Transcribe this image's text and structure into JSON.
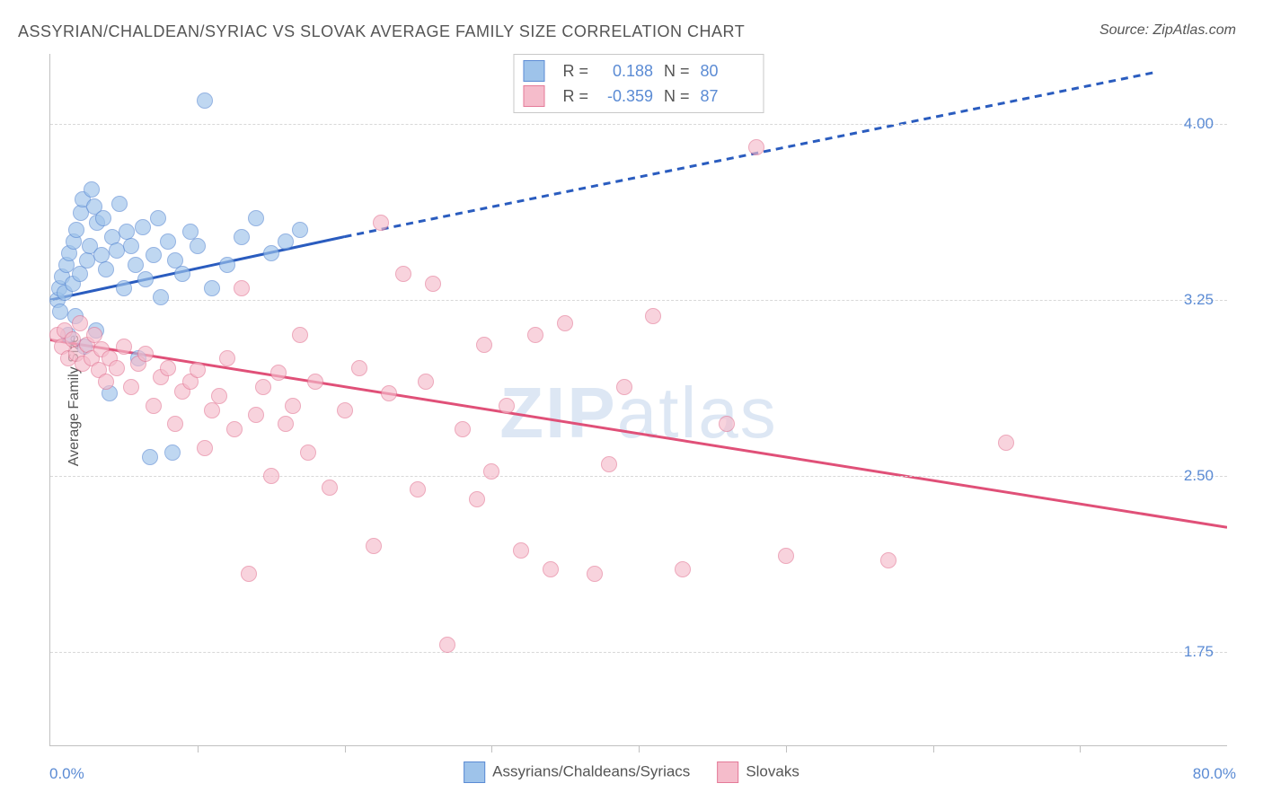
{
  "title": "ASSYRIAN/CHALDEAN/SYRIAC VS SLOVAK AVERAGE FAMILY SIZE CORRELATION CHART",
  "source": "Source: ZipAtlas.com",
  "ylabel": "Average Family Size",
  "watermark_a": "ZIP",
  "watermark_b": "atlas",
  "chart": {
    "type": "scatter",
    "background_color": "#ffffff",
    "grid_color": "#d8d8d8",
    "axis_color": "#c0c0c0",
    "xlim": [
      0,
      80
    ],
    "ylim": [
      1.35,
      4.3
    ],
    "ytick_values": [
      1.75,
      2.5,
      3.25,
      4.0
    ],
    "ytick_labels": [
      "1.75",
      "2.50",
      "3.25",
      "4.00"
    ],
    "xtick_positions": [
      10,
      20,
      30,
      40,
      50,
      60,
      70
    ],
    "xaxis_start_label": "0.0%",
    "xaxis_end_label": "80.0%",
    "ylabel_fontsize": 16,
    "tick_label_color": "#5b8bd4",
    "tick_label_fontsize": 17,
    "marker_size": 18,
    "marker_opacity": 0.35,
    "line_width": 3
  },
  "series": [
    {
      "name": "Assyrians/Chaldeans/Syriacs",
      "fill_color": "#9ec3ea",
      "stroke_color": "#5b8bd4",
      "line_color": "#2a5cbf",
      "R_label": "R =",
      "R_value": "0.188",
      "N_label": "N =",
      "N_value": "80",
      "regression": {
        "x1": 0,
        "y1": 3.25,
        "x2_solid": 20,
        "y2_solid": 3.52,
        "x2_dash": 75,
        "y2_dash": 4.22
      },
      "points": [
        [
          0.5,
          3.25
        ],
        [
          0.6,
          3.3
        ],
        [
          0.7,
          3.2
        ],
        [
          0.8,
          3.35
        ],
        [
          1.0,
          3.28
        ],
        [
          1.1,
          3.4
        ],
        [
          1.2,
          3.1
        ],
        [
          1.3,
          3.45
        ],
        [
          1.5,
          3.32
        ],
        [
          1.6,
          3.5
        ],
        [
          1.7,
          3.18
        ],
        [
          1.8,
          3.55
        ],
        [
          2.0,
          3.36
        ],
        [
          2.1,
          3.62
        ],
        [
          2.2,
          3.68
        ],
        [
          2.3,
          3.05
        ],
        [
          2.5,
          3.42
        ],
        [
          2.7,
          3.48
        ],
        [
          2.8,
          3.72
        ],
        [
          3.0,
          3.65
        ],
        [
          3.1,
          3.12
        ],
        [
          3.2,
          3.58
        ],
        [
          3.5,
          3.44
        ],
        [
          3.6,
          3.6
        ],
        [
          3.8,
          3.38
        ],
        [
          4.0,
          2.85
        ],
        [
          4.2,
          3.52
        ],
        [
          4.5,
          3.46
        ],
        [
          4.7,
          3.66
        ],
        [
          5.0,
          3.3
        ],
        [
          5.2,
          3.54
        ],
        [
          5.5,
          3.48
        ],
        [
          5.8,
          3.4
        ],
        [
          6.0,
          3.0
        ],
        [
          6.3,
          3.56
        ],
        [
          6.5,
          3.34
        ],
        [
          6.8,
          2.58
        ],
        [
          7.0,
          3.44
        ],
        [
          7.3,
          3.6
        ],
        [
          7.5,
          3.26
        ],
        [
          8.0,
          3.5
        ],
        [
          8.3,
          2.6
        ],
        [
          8.5,
          3.42
        ],
        [
          9.0,
          3.36
        ],
        [
          9.5,
          3.54
        ],
        [
          10.0,
          3.48
        ],
        [
          10.5,
          4.1
        ],
        [
          11.0,
          3.3
        ],
        [
          12.0,
          3.4
        ],
        [
          13.0,
          3.52
        ],
        [
          14.0,
          3.6
        ],
        [
          15.0,
          3.45
        ],
        [
          16.0,
          3.5
        ],
        [
          17.0,
          3.55
        ]
      ]
    },
    {
      "name": "Slovaks",
      "fill_color": "#f5bccb",
      "stroke_color": "#e47a98",
      "line_color": "#e05078",
      "R_label": "R =",
      "R_value": "-0.359",
      "N_label": "N =",
      "N_value": "87",
      "regression": {
        "x1": 0,
        "y1": 3.08,
        "x2_solid": 80,
        "y2_solid": 2.28,
        "x2_dash": 80,
        "y2_dash": 2.28
      },
      "points": [
        [
          0.5,
          3.1
        ],
        [
          0.8,
          3.05
        ],
        [
          1.0,
          3.12
        ],
        [
          1.2,
          3.0
        ],
        [
          1.5,
          3.08
        ],
        [
          1.8,
          3.02
        ],
        [
          2.0,
          3.15
        ],
        [
          2.2,
          2.98
        ],
        [
          2.5,
          3.06
        ],
        [
          2.8,
          3.0
        ],
        [
          3.0,
          3.1
        ],
        [
          3.3,
          2.95
        ],
        [
          3.5,
          3.04
        ],
        [
          3.8,
          2.9
        ],
        [
          4.0,
          3.0
        ],
        [
          4.5,
          2.96
        ],
        [
          5.0,
          3.05
        ],
        [
          5.5,
          2.88
        ],
        [
          6.0,
          2.98
        ],
        [
          6.5,
          3.02
        ],
        [
          7.0,
          2.8
        ],
        [
          7.5,
          2.92
        ],
        [
          8.0,
          2.96
        ],
        [
          8.5,
          2.72
        ],
        [
          9.0,
          2.86
        ],
        [
          9.5,
          2.9
        ],
        [
          10.0,
          2.95
        ],
        [
          10.5,
          2.62
        ],
        [
          11.0,
          2.78
        ],
        [
          11.5,
          2.84
        ],
        [
          12.0,
          3.0
        ],
        [
          12.5,
          2.7
        ],
        [
          13.0,
          3.3
        ],
        [
          13.5,
          2.08
        ],
        [
          14.0,
          2.76
        ],
        [
          14.5,
          2.88
        ],
        [
          15.0,
          2.5
        ],
        [
          15.5,
          2.94
        ],
        [
          16.0,
          2.72
        ],
        [
          16.5,
          2.8
        ],
        [
          17.0,
          3.1
        ],
        [
          17.5,
          2.6
        ],
        [
          18.0,
          2.9
        ],
        [
          19.0,
          2.45
        ],
        [
          20.0,
          2.78
        ],
        [
          21.0,
          2.96
        ],
        [
          22.0,
          2.2
        ],
        [
          22.5,
          3.58
        ],
        [
          23.0,
          2.85
        ],
        [
          24.0,
          3.36
        ],
        [
          25.0,
          2.44
        ],
        [
          25.5,
          2.9
        ],
        [
          26.0,
          3.32
        ],
        [
          27.0,
          1.78
        ],
        [
          28.0,
          2.7
        ],
        [
          29.0,
          2.4
        ],
        [
          29.5,
          3.06
        ],
        [
          30.0,
          2.52
        ],
        [
          31.0,
          2.8
        ],
        [
          32.0,
          2.18
        ],
        [
          33.0,
          3.1
        ],
        [
          34.0,
          2.1
        ],
        [
          35.0,
          3.15
        ],
        [
          37.0,
          2.08
        ],
        [
          38.0,
          2.55
        ],
        [
          39.0,
          2.88
        ],
        [
          41.0,
          3.18
        ],
        [
          43.0,
          2.1
        ],
        [
          46.0,
          2.72
        ],
        [
          48.0,
          3.9
        ],
        [
          50.0,
          2.16
        ],
        [
          57.0,
          2.14
        ],
        [
          65.0,
          2.64
        ]
      ]
    }
  ],
  "bottom_legend": {
    "item1": "Assyrians/Chaldeans/Syriacs",
    "item2": "Slovaks"
  }
}
